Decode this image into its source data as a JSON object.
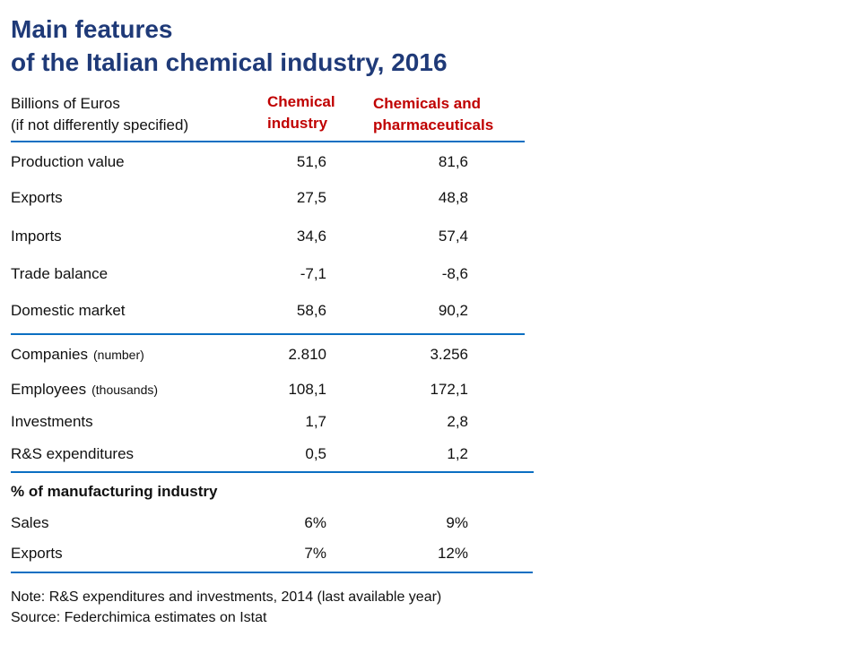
{
  "title": {
    "line1": "Main features",
    "line2": "of the Italian chemical industry, 2016"
  },
  "units": {
    "line1": "Billions of Euros",
    "line2": "(if not differently specified)"
  },
  "columns": {
    "chemical": {
      "line1": "Chemical",
      "line2": "industry"
    },
    "chem_pharma": {
      "line1": "Chemicals and",
      "line2": "pharmaceuticals"
    }
  },
  "rows": [
    {
      "label": "Production value",
      "unit": "",
      "chemical": "51,6",
      "chem_pharma": "81,6"
    },
    {
      "label": "Exports",
      "unit": "",
      "chemical": "27,5",
      "chem_pharma": "48,8"
    },
    {
      "label": "Imports",
      "unit": "",
      "chemical": "34,6",
      "chem_pharma": "57,4"
    },
    {
      "label": "Trade balance",
      "unit": "",
      "chemical": "-7,1",
      "chem_pharma": "-8,6"
    },
    {
      "label": "Domestic market",
      "unit": "",
      "chemical": "58,6",
      "chem_pharma": "90,2"
    },
    {
      "label": "Companies",
      "unit": "(number)",
      "chemical": "2.810",
      "chem_pharma": "3.256"
    },
    {
      "label": "Employees",
      "unit": "(thousands)",
      "chemical": "108,1",
      "chem_pharma": "172,1"
    },
    {
      "label": "Investments",
      "unit": "",
      "chemical": "1,7",
      "chem_pharma": "2,8"
    },
    {
      "label": "R&S expenditures",
      "unit": "",
      "chemical": "0,5",
      "chem_pharma": "1,2"
    }
  ],
  "manufacturing": {
    "heading": "% of manufacturing industry",
    "rows": [
      {
        "label": "Sales",
        "chemical": "6%",
        "chem_pharma": "9%"
      },
      {
        "label": "Exports",
        "chemical": "7%",
        "chem_pharma": "12%"
      }
    ]
  },
  "note": {
    "line1": "Note: R&S expenditures and investments, 2014 (last available year)",
    "line2": "Source: Federchimica estimates on Istat"
  },
  "colors": {
    "title": "#1f3a78",
    "column_header": "#c00000",
    "rule": "#0b6fc2",
    "text": "#111111"
  }
}
